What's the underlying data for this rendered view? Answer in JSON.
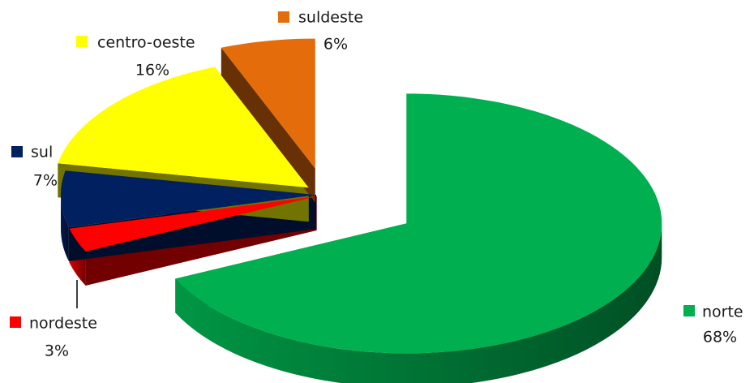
{
  "chart_data": {
    "type": "pie",
    "three_d": true,
    "exploded": true,
    "categories": [
      "norte",
      "nordeste",
      "sul",
      "centro-oeste",
      "suldeste"
    ],
    "values": [
      68,
      3,
      7,
      16,
      6
    ],
    "value_labels": [
      "68%",
      "3%",
      "7%",
      "16%",
      "6%"
    ],
    "colors": [
      "#00b050",
      "#ff0000",
      "#002060",
      "#ffff00",
      "#e46c0a"
    ]
  }
}
